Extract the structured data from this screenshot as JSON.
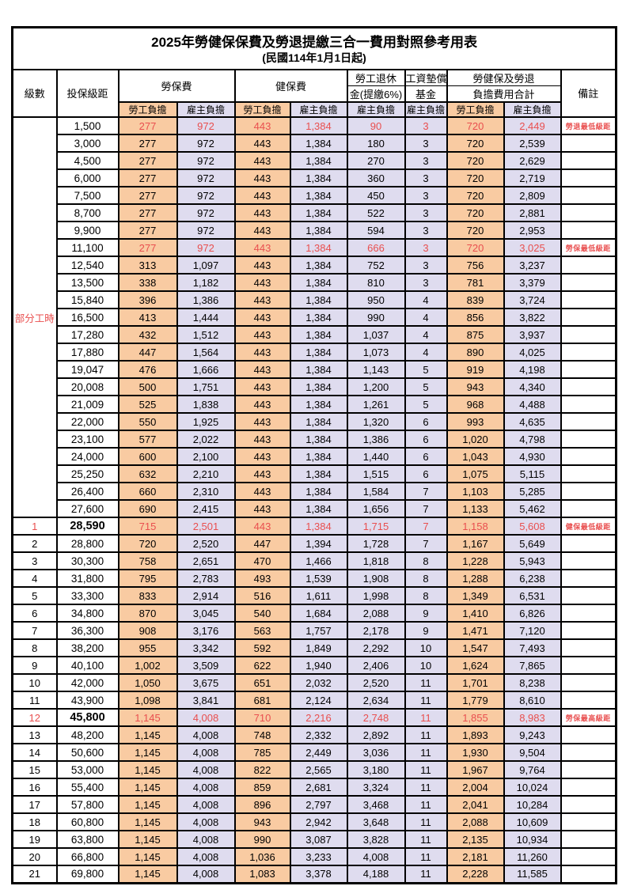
{
  "title": "2025年勞健保保費及勞退提繳三合一費用對照參考用表",
  "subtitle": "(民國114年1月1日起)",
  "colors": {
    "employee_fill": "#F9CBA2",
    "employer_fill": "#DFDCEF",
    "highlight_red": "#E94F4F"
  },
  "headers": {
    "level": "級數",
    "bracket": "投保級距",
    "labor_insurance": "勞保費",
    "health_insurance": "健保費",
    "pension_line1": "勞工退休",
    "pension_line2": "金(提繳6%)",
    "wage_fund_line1": "工資墊償",
    "wage_fund_line2": "基金",
    "total_line1": "勞健保及勞退",
    "total_line2": "負擔費用合計",
    "note": "備註",
    "sub": [
      "勞工負擔",
      "雇主負擔",
      "勞工負擔",
      "雇主負擔",
      "雇主負擔",
      "雇主負擔",
      "勞工負擔",
      "雇主負擔"
    ]
  },
  "table": {
    "part_time": {
      "label": "部分工時",
      "span": 23
    },
    "rows": [
      {
        "lv": "",
        "br": "1,500",
        "v": [
          "277",
          "972",
          "443",
          "1,384",
          "90",
          "3",
          "720",
          "2,449"
        ],
        "n": "勞退最低級距",
        "red": true
      },
      {
        "lv": "",
        "br": "3,000",
        "v": [
          "277",
          "972",
          "443",
          "1,384",
          "180",
          "3",
          "720",
          "2,539"
        ]
      },
      {
        "lv": "",
        "br": "4,500",
        "v": [
          "277",
          "972",
          "443",
          "1,384",
          "270",
          "3",
          "720",
          "2,629"
        ]
      },
      {
        "lv": "",
        "br": "6,000",
        "v": [
          "277",
          "972",
          "443",
          "1,384",
          "360",
          "3",
          "720",
          "2,719"
        ]
      },
      {
        "lv": "",
        "br": "7,500",
        "v": [
          "277",
          "972",
          "443",
          "1,384",
          "450",
          "3",
          "720",
          "2,809"
        ]
      },
      {
        "lv": "",
        "br": "8,700",
        "v": [
          "277",
          "972",
          "443",
          "1,384",
          "522",
          "3",
          "720",
          "2,881"
        ]
      },
      {
        "lv": "",
        "br": "9,900",
        "v": [
          "277",
          "972",
          "443",
          "1,384",
          "594",
          "3",
          "720",
          "2,953"
        ]
      },
      {
        "lv": "",
        "br": "11,100",
        "v": [
          "277",
          "972",
          "443",
          "1,384",
          "666",
          "3",
          "720",
          "3,025"
        ],
        "n": "勞保最低級距",
        "red": true
      },
      {
        "lv": "",
        "br": "12,540",
        "v": [
          "313",
          "1,097",
          "443",
          "1,384",
          "752",
          "3",
          "756",
          "3,237"
        ]
      },
      {
        "lv": "",
        "br": "13,500",
        "v": [
          "338",
          "1,182",
          "443",
          "1,384",
          "810",
          "3",
          "781",
          "3,379"
        ]
      },
      {
        "lv": "",
        "br": "15,840",
        "v": [
          "396",
          "1,386",
          "443",
          "1,384",
          "950",
          "4",
          "839",
          "3,724"
        ]
      },
      {
        "lv": "",
        "br": "16,500",
        "v": [
          "413",
          "1,444",
          "443",
          "1,384",
          "990",
          "4",
          "856",
          "3,822"
        ]
      },
      {
        "lv": "",
        "br": "17,280",
        "v": [
          "432",
          "1,512",
          "443",
          "1,384",
          "1,037",
          "4",
          "875",
          "3,937"
        ]
      },
      {
        "lv": "",
        "br": "17,880",
        "v": [
          "447",
          "1,564",
          "443",
          "1,384",
          "1,073",
          "4",
          "890",
          "4,025"
        ]
      },
      {
        "lv": "",
        "br": "19,047",
        "v": [
          "476",
          "1,666",
          "443",
          "1,384",
          "1,143",
          "5",
          "919",
          "4,198"
        ]
      },
      {
        "lv": "",
        "br": "20,008",
        "v": [
          "500",
          "1,751",
          "443",
          "1,384",
          "1,200",
          "5",
          "943",
          "4,340"
        ]
      },
      {
        "lv": "",
        "br": "21,009",
        "v": [
          "525",
          "1,838",
          "443",
          "1,384",
          "1,261",
          "5",
          "968",
          "4,488"
        ]
      },
      {
        "lv": "",
        "br": "22,000",
        "v": [
          "550",
          "1,925",
          "443",
          "1,384",
          "1,320",
          "6",
          "993",
          "4,635"
        ]
      },
      {
        "lv": "",
        "br": "23,100",
        "v": [
          "577",
          "2,022",
          "443",
          "1,384",
          "1,386",
          "6",
          "1,020",
          "4,798"
        ]
      },
      {
        "lv": "",
        "br": "24,000",
        "v": [
          "600",
          "2,100",
          "443",
          "1,384",
          "1,440",
          "6",
          "1,043",
          "4,930"
        ]
      },
      {
        "lv": "",
        "br": "25,250",
        "v": [
          "632",
          "2,210",
          "443",
          "1,384",
          "1,515",
          "6",
          "1,075",
          "5,115"
        ]
      },
      {
        "lv": "",
        "br": "26,400",
        "v": [
          "660",
          "2,310",
          "443",
          "1,384",
          "1,584",
          "7",
          "1,103",
          "5,285"
        ]
      },
      {
        "lv": "",
        "br": "27,600",
        "v": [
          "690",
          "2,415",
          "443",
          "1,384",
          "1,656",
          "7",
          "1,133",
          "5,462"
        ]
      },
      {
        "lv": "1",
        "br": "28,590",
        "v": [
          "715",
          "2,501",
          "443",
          "1,384",
          "1,715",
          "7",
          "1,158",
          "5,608"
        ],
        "n": "健保最低級距",
        "red": true,
        "b": true
      },
      {
        "lv": "2",
        "br": "28,800",
        "v": [
          "720",
          "2,520",
          "447",
          "1,394",
          "1,728",
          "7",
          "1,167",
          "5,649"
        ]
      },
      {
        "lv": "3",
        "br": "30,300",
        "v": [
          "758",
          "2,651",
          "470",
          "1,466",
          "1,818",
          "8",
          "1,228",
          "5,943"
        ]
      },
      {
        "lv": "4",
        "br": "31,800",
        "v": [
          "795",
          "2,783",
          "493",
          "1,539",
          "1,908",
          "8",
          "1,288",
          "6,238"
        ]
      },
      {
        "lv": "5",
        "br": "33,300",
        "v": [
          "833",
          "2,914",
          "516",
          "1,611",
          "1,998",
          "8",
          "1,349",
          "6,531"
        ]
      },
      {
        "lv": "6",
        "br": "34,800",
        "v": [
          "870",
          "3,045",
          "540",
          "1,684",
          "2,088",
          "9",
          "1,410",
          "6,826"
        ]
      },
      {
        "lv": "7",
        "br": "36,300",
        "v": [
          "908",
          "3,176",
          "563",
          "1,757",
          "2,178",
          "9",
          "1,471",
          "7,120"
        ]
      },
      {
        "lv": "8",
        "br": "38,200",
        "v": [
          "955",
          "3,342",
          "592",
          "1,849",
          "2,292",
          "10",
          "1,547",
          "7,493"
        ]
      },
      {
        "lv": "9",
        "br": "40,100",
        "v": [
          "1,002",
          "3,509",
          "622",
          "1,940",
          "2,406",
          "10",
          "1,624",
          "7,865"
        ]
      },
      {
        "lv": "10",
        "br": "42,000",
        "v": [
          "1,050",
          "3,675",
          "651",
          "2,032",
          "2,520",
          "11",
          "1,701",
          "8,238"
        ]
      },
      {
        "lv": "11",
        "br": "43,900",
        "v": [
          "1,098",
          "3,841",
          "681",
          "2,124",
          "2,634",
          "11",
          "1,779",
          "8,610"
        ]
      },
      {
        "lv": "12",
        "br": "45,800",
        "v": [
          "1,145",
          "4,008",
          "710",
          "2,216",
          "2,748",
          "11",
          "1,855",
          "8,983"
        ],
        "n": "勞保最高級距",
        "red": true,
        "b": true
      },
      {
        "lv": "13",
        "br": "48,200",
        "v": [
          "1,145",
          "4,008",
          "748",
          "2,332",
          "2,892",
          "11",
          "1,893",
          "9,243"
        ]
      },
      {
        "lv": "14",
        "br": "50,600",
        "v": [
          "1,145",
          "4,008",
          "785",
          "2,449",
          "3,036",
          "11",
          "1,930",
          "9,504"
        ]
      },
      {
        "lv": "15",
        "br": "53,000",
        "v": [
          "1,145",
          "4,008",
          "822",
          "2,565",
          "3,180",
          "11",
          "1,967",
          "9,764"
        ]
      },
      {
        "lv": "16",
        "br": "55,400",
        "v": [
          "1,145",
          "4,008",
          "859",
          "2,681",
          "3,324",
          "11",
          "2,004",
          "10,024"
        ]
      },
      {
        "lv": "17",
        "br": "57,800",
        "v": [
          "1,145",
          "4,008",
          "896",
          "2,797",
          "3,468",
          "11",
          "2,041",
          "10,284"
        ]
      },
      {
        "lv": "18",
        "br": "60,800",
        "v": [
          "1,145",
          "4,008",
          "943",
          "2,942",
          "3,648",
          "11",
          "2,088",
          "10,609"
        ]
      },
      {
        "lv": "19",
        "br": "63,800",
        "v": [
          "1,145",
          "4,008",
          "990",
          "3,087",
          "3,828",
          "11",
          "2,135",
          "10,934"
        ]
      },
      {
        "lv": "20",
        "br": "66,800",
        "v": [
          "1,145",
          "4,008",
          "1,036",
          "3,233",
          "4,008",
          "11",
          "2,181",
          "11,260"
        ]
      },
      {
        "lv": "21",
        "br": "69,800",
        "v": [
          "1,145",
          "4,008",
          "1,083",
          "3,378",
          "4,188",
          "11",
          "2,228",
          "11,585"
        ]
      }
    ]
  }
}
